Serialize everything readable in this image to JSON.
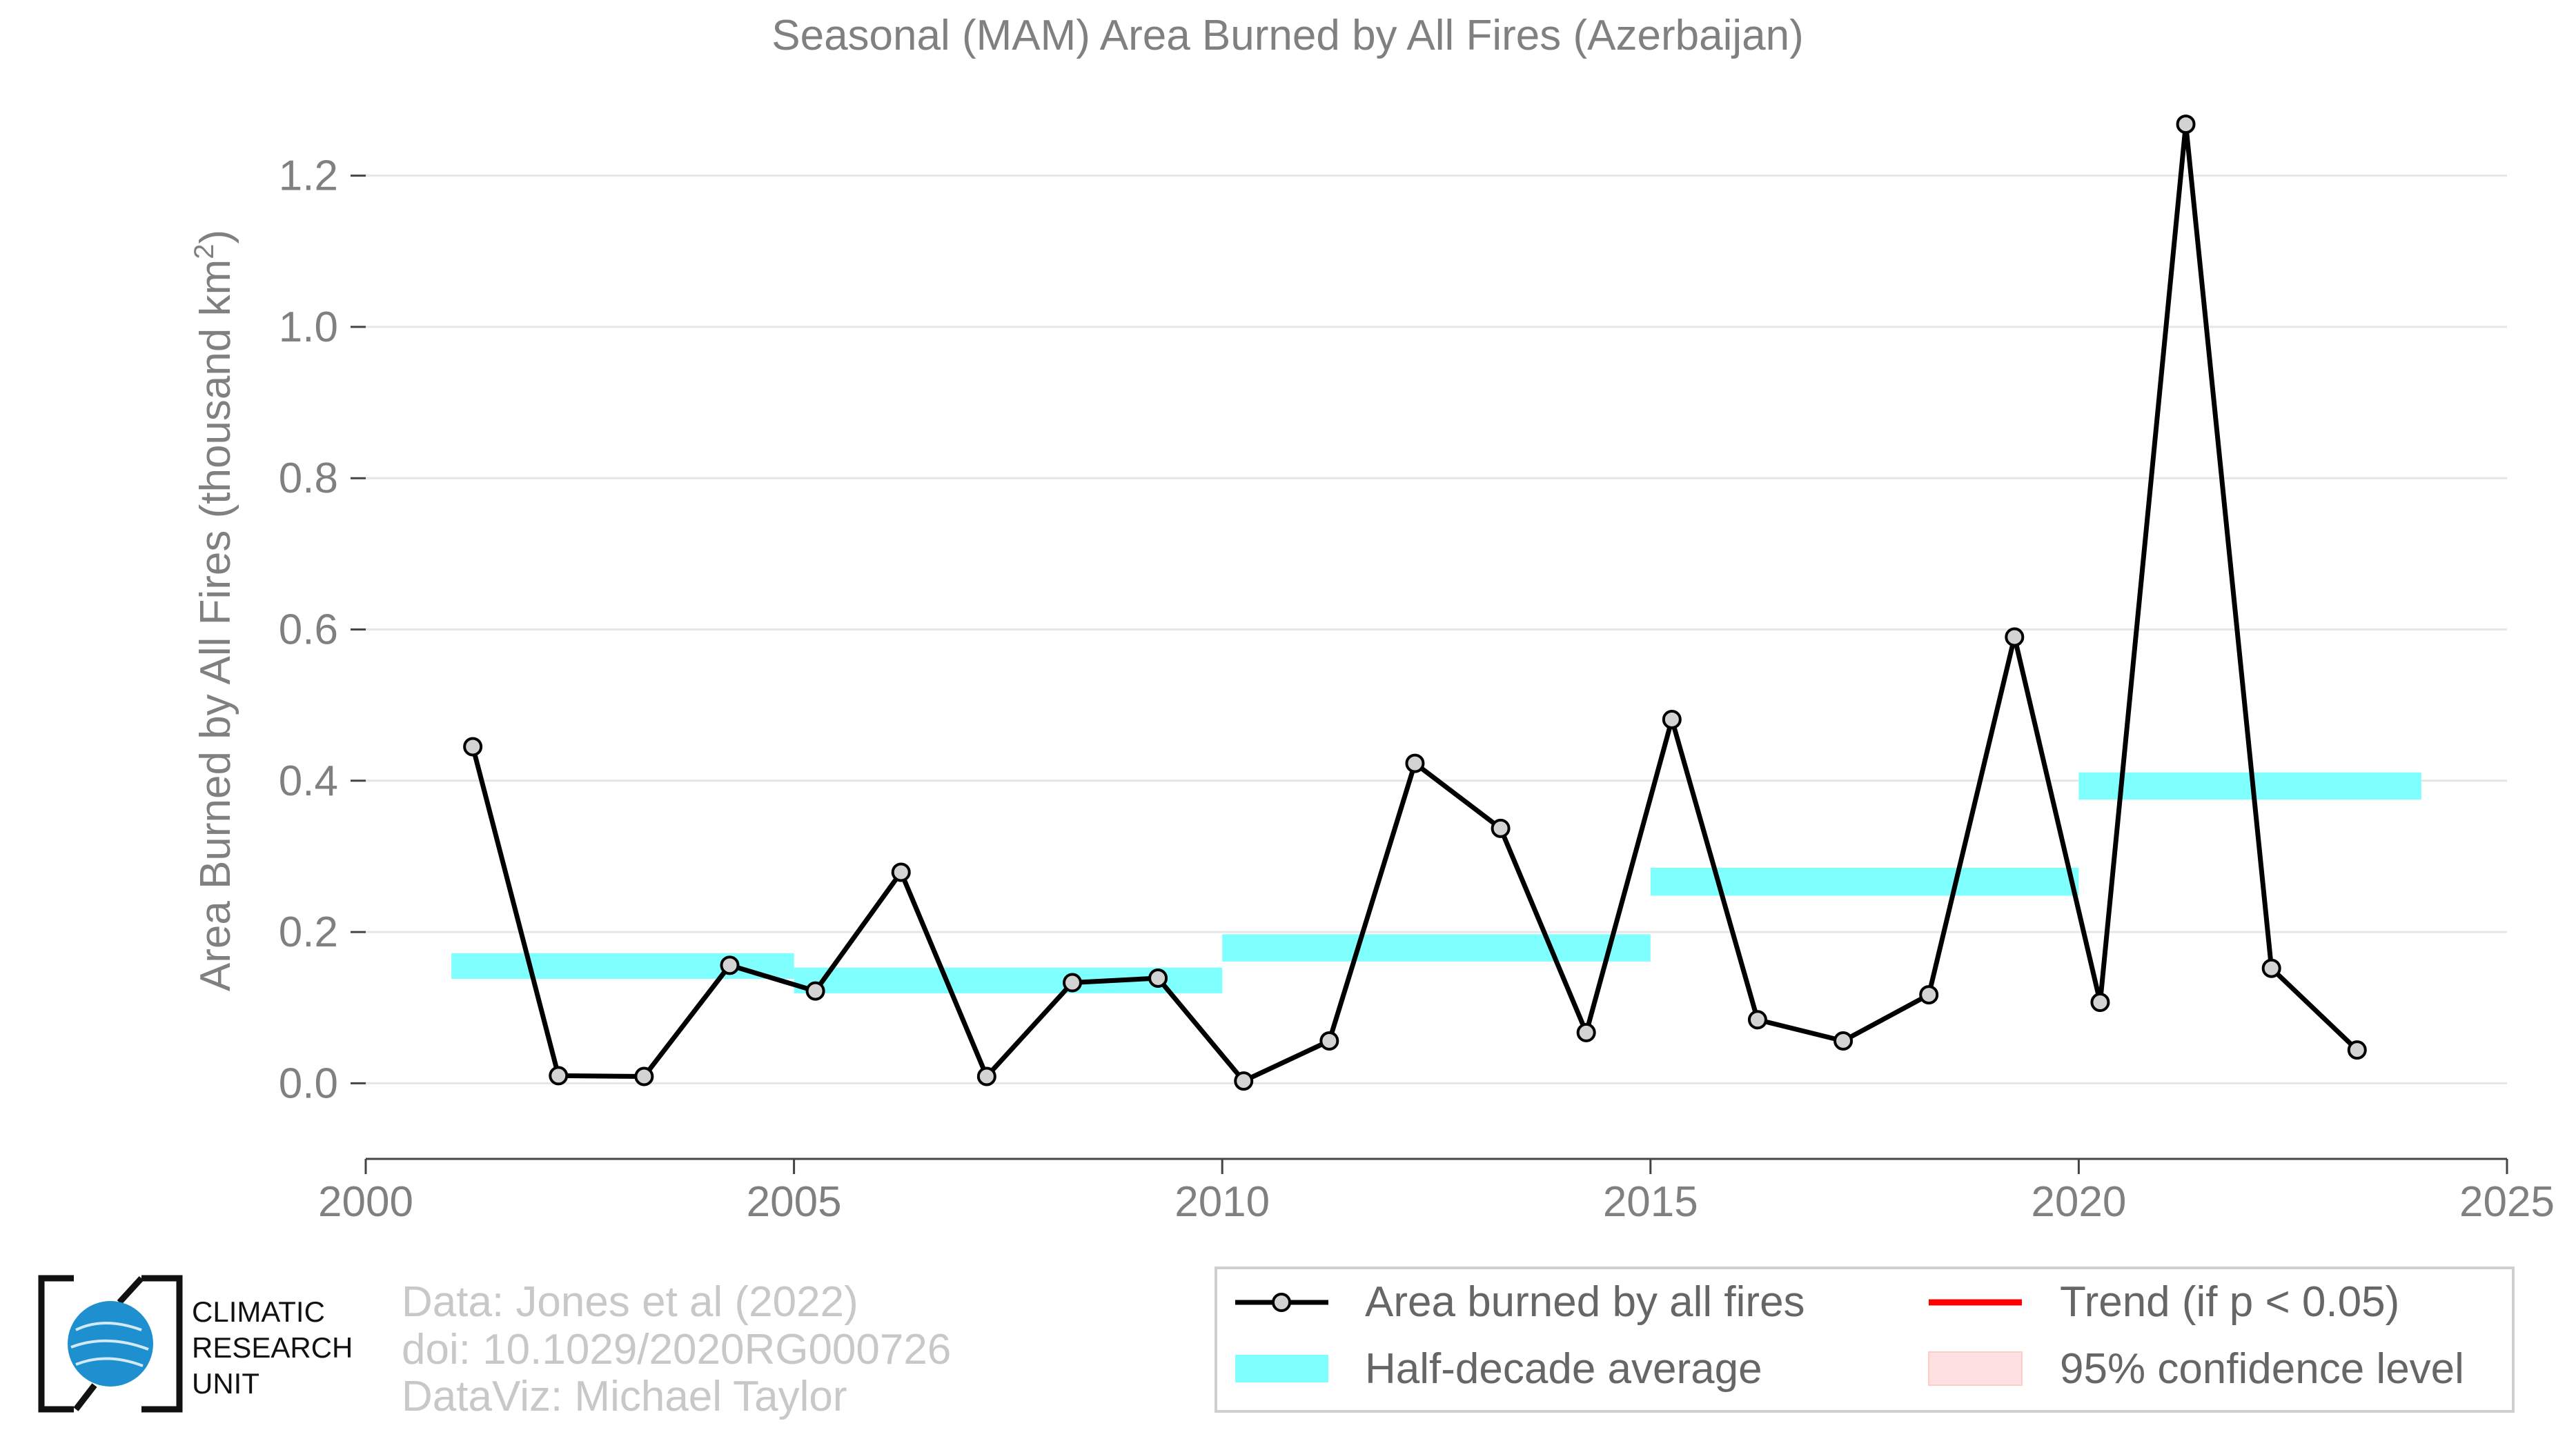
{
  "chart_data": {
    "type": "line",
    "title": "Seasonal (MAM) Area Burned by All Fires (Azerbaijan)",
    "xlabel": "",
    "ylabel": "Area Burned by All Fires (thousand km",
    "ylabel_sup": "2",
    "ylabel_close": ")",
    "xlim": [
      2000,
      2025
    ],
    "ylim": [
      -0.1,
      1.3
    ],
    "xticks": [
      2000,
      2005,
      2010,
      2015,
      2020,
      2025
    ],
    "xtick_labels": [
      "2000",
      "2005",
      "2010",
      "2015",
      "2020",
      "2025"
    ],
    "yticks": [
      0.0,
      0.2,
      0.4,
      0.6,
      0.8,
      1.0,
      1.2
    ],
    "ytick_labels": [
      "0.0",
      "0.2",
      "0.4",
      "0.6",
      "0.8",
      "1.0",
      "1.2"
    ],
    "grid": "horizontal",
    "series": [
      {
        "name": "Area burned by all fires",
        "color": "#000000",
        "marker_fill": "#d3d3d3",
        "x": [
          2001.25,
          2002.25,
          2003.25,
          2004.25,
          2005.25,
          2006.25,
          2007.25,
          2008.25,
          2009.25,
          2010.25,
          2011.25,
          2012.25,
          2013.25,
          2014.25,
          2015.25,
          2016.25,
          2017.25,
          2018.25,
          2019.25,
          2020.25,
          2021.25,
          2022.25,
          2023.25
        ],
        "values": [
          0.445,
          0.01,
          0.009,
          0.156,
          0.122,
          0.279,
          0.009,
          0.133,
          0.139,
          0.003,
          0.056,
          0.423,
          0.337,
          0.067,
          0.481,
          0.084,
          0.056,
          0.117,
          0.59,
          0.107,
          1.268,
          0.152,
          0.044
        ]
      }
    ],
    "half_decade_average": {
      "name": "Half-decade average",
      "color": "#80ffff",
      "segments": [
        {
          "x0": 2001,
          "x1": 2005,
          "y0": 0.138,
          "y1": 0.172
        },
        {
          "x0": 2005,
          "x1": 2010,
          "y0": 0.119,
          "y1": 0.153
        },
        {
          "x0": 2010,
          "x1": 2015,
          "y0": 0.161,
          "y1": 0.197
        },
        {
          "x0": 2015,
          "x1": 2020,
          "y0": 0.248,
          "y1": 0.285
        },
        {
          "x0": 2020,
          "x1": 2024,
          "y0": 0.375,
          "y1": 0.411
        }
      ]
    },
    "legend": {
      "placement": "bottom-right",
      "entries": [
        {
          "key": "line",
          "label": "Area burned by all fires",
          "color": "#000000"
        },
        {
          "key": "trend",
          "label": "Trend (if p < 0.05)",
          "color": "#ff0000"
        },
        {
          "key": "band",
          "label": "Half-decade average",
          "color": "#80ffff"
        },
        {
          "key": "ci",
          "label": "95% confidence level",
          "color": "#ffe0e0"
        }
      ]
    }
  },
  "credits": {
    "data": "Data: Jones et al (2022)",
    "doi": "doi: 10.1029/2020RG000726",
    "dataviz": "DataViz: Michael Taylor"
  },
  "logo": {
    "line1": "CLIMATIC",
    "line2": "RESEARCH",
    "line3": "UNIT",
    "globe_color": "#1e90d0"
  }
}
